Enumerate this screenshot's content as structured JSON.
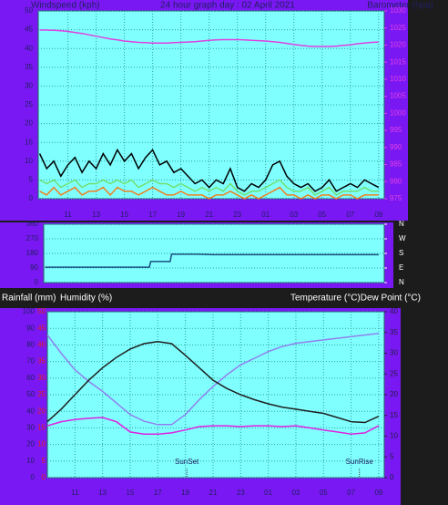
{
  "chart_data": [
    {
      "type": "line",
      "title": "24 hour graph day : 02 April 2021",
      "y_label": "Windspeed (kph)",
      "y2_label": "Barometer (hpa)",
      "x": [
        9,
        9.5,
        10,
        10.5,
        11,
        11.5,
        12,
        12.5,
        13,
        13.5,
        14,
        14.5,
        15,
        15.5,
        16,
        16.5,
        17,
        17.5,
        18,
        18.5,
        19,
        19.5,
        20,
        20.5,
        21,
        21.5,
        22,
        22.5,
        23,
        23.5,
        24,
        24.5,
        25,
        25.5,
        26,
        26.5,
        27,
        27.5,
        28,
        28.5,
        29,
        29.5,
        30,
        30.5,
        31,
        31.5,
        32,
        32.5,
        33
      ],
      "xlim": [
        8.9,
        33.4
      ],
      "xticks": [
        11,
        13,
        15,
        17,
        19,
        21,
        23,
        {
          "value": 25,
          "label": "01"
        },
        {
          "value": 27,
          "label": "03"
        },
        {
          "value": 29,
          "label": "05"
        },
        {
          "value": 31,
          "label": "07"
        },
        {
          "value": 33,
          "label": "09"
        }
      ],
      "ylim": [
        0,
        50
      ],
      "yticks": [
        0,
        5,
        10,
        15,
        20,
        25,
        30,
        35,
        40,
        45,
        50
      ],
      "y2lim": [
        975,
        1030
      ],
      "y2ticks": [
        975,
        980,
        985,
        990,
        995,
        1000,
        1005,
        1010,
        1015,
        1020,
        1025,
        1030
      ],
      "y2_color": "#e040e0",
      "grid": true,
      "series": [
        {
          "color": "#000000",
          "values": [
            12,
            8,
            10,
            6,
            9,
            11,
            7,
            10,
            8,
            12,
            9,
            13,
            10,
            12,
            8,
            11,
            13,
            9,
            10,
            7,
            8,
            6,
            4,
            5,
            3,
            5,
            4,
            8,
            3,
            2,
            4,
            3,
            5,
            9,
            10,
            6,
            4,
            3,
            4,
            2,
            3,
            5,
            2,
            3,
            4,
            3,
            5,
            4,
            3
          ]
        },
        {
          "color": "#70e070",
          "values": [
            5,
            4,
            5,
            3,
            4,
            5,
            3,
            4,
            4,
            5,
            4,
            5,
            4,
            5,
            3,
            4,
            5,
            4,
            4,
            3,
            4,
            3,
            2,
            3,
            2,
            3,
            2,
            4,
            2,
            1,
            2,
            2,
            3,
            4,
            5,
            3,
            2,
            2,
            3,
            1,
            2,
            3,
            1,
            2,
            2,
            2,
            3,
            2,
            2
          ]
        },
        {
          "color": "#f08020",
          "values": [
            2,
            1,
            3,
            1,
            2,
            3,
            1,
            2,
            2,
            3,
            1,
            3,
            2,
            2,
            1,
            2,
            3,
            2,
            1,
            1,
            2,
            1,
            1,
            1,
            0,
            1,
            1,
            2,
            1,
            0,
            1,
            0,
            1,
            2,
            3,
            1,
            1,
            0,
            1,
            0,
            1,
            1,
            0,
            1,
            1,
            0,
            1,
            1,
            1
          ]
        },
        {
          "color": "#e040e0",
          "axis": "y2",
          "values": [
            1024.4,
            1024.4,
            1024.3,
            1024.2,
            1024.0,
            1023.7,
            1023.4,
            1023.0,
            1022.6,
            1022.2,
            1021.8,
            1021.5,
            1021.2,
            1021.0,
            1020.8,
            1020.7,
            1020.6,
            1020.6,
            1020.6,
            1020.7,
            1020.8,
            1020.9,
            1021.0,
            1021.2,
            1021.4,
            1021.5,
            1021.6,
            1021.6,
            1021.6,
            1021.5,
            1021.4,
            1021.3,
            1021.2,
            1021.0,
            1020.8,
            1020.5,
            1020.2,
            1019.9,
            1019.7,
            1019.6,
            1019.6,
            1019.6,
            1019.7,
            1019.9,
            1020.1,
            1020.4,
            1020.6,
            1020.8,
            1020.9
          ]
        }
      ]
    },
    {
      "type": "line",
      "x": [
        9,
        16.5,
        16.6,
        18,
        18.1,
        20,
        21,
        33
      ],
      "xlim": [
        8.9,
        33.4
      ],
      "ylim": [
        0,
        360
      ],
      "yticks": [
        0,
        90,
        180,
        270,
        360
      ],
      "y2lim": [
        0,
        360
      ],
      "y2ticks": [
        {
          "value": 0,
          "label": "N"
        },
        {
          "value": 90,
          "label": "E"
        },
        {
          "value": 180,
          "label": "S"
        },
        {
          "value": 270,
          "label": "W"
        },
        {
          "value": 360,
          "label": "N"
        }
      ],
      "y2_color": "#ffffff",
      "grid": true,
      "series": [
        {
          "color": "#1a5080",
          "values": [
            95,
            95,
            130,
            130,
            175,
            175,
            172,
            172
          ]
        }
      ]
    },
    {
      "type": "line",
      "y_label": "Humidity (%)",
      "y2_label": "Temperature (°C)Dew Point (°C)",
      "y3_label": "Rainfall (mm)",
      "x": [
        9,
        10,
        11,
        12,
        13,
        14,
        15,
        16,
        17,
        18,
        19,
        20,
        21,
        22,
        23,
        24,
        25,
        26,
        27,
        28,
        29,
        30,
        31,
        32,
        33
      ],
      "xlim": [
        9,
        33.4
      ],
      "xticks": [
        11,
        13,
        15,
        17,
        19,
        21,
        23,
        {
          "value": 25,
          "label": "01"
        },
        {
          "value": 27,
          "label": "03"
        },
        {
          "value": 29,
          "label": "05"
        },
        {
          "value": 31,
          "label": "07"
        },
        {
          "value": 33,
          "label": "09"
        }
      ],
      "ylim": [
        0,
        100
      ],
      "yticks": [
        0,
        10,
        20,
        30,
        40,
        50,
        60,
        70,
        80,
        90,
        100
      ],
      "y2lim": [
        0,
        40
      ],
      "y2ticks": [
        0,
        5,
        10,
        15,
        20,
        25,
        30,
        35,
        40
      ],
      "y2_color": "#202040",
      "y3lim": [
        0,
        50
      ],
      "y3ticks": [
        0,
        5,
        10,
        15,
        20,
        25,
        30,
        35,
        40,
        45,
        50
      ],
      "y3_color": "#e02020",
      "grid": true,
      "annotations": [
        {
          "text": "SunSet",
          "x": 19.1
        },
        {
          "text": "SunRise",
          "x": 31.6
        }
      ],
      "series": [
        {
          "color": "#9080f0",
          "values": [
            86,
            75,
            65,
            58,
            52,
            45,
            38,
            34,
            32,
            32,
            38,
            47,
            55,
            62,
            68,
            72,
            76,
            79,
            81,
            82,
            83,
            84,
            85,
            86,
            87
          ]
        },
        {
          "color": "#202020",
          "axis": "y2",
          "values": [
            13.5,
            16.5,
            20,
            23.5,
            26.5,
            29,
            31,
            32.3,
            32.8,
            32.3,
            29.5,
            26.5,
            23.5,
            21.5,
            20,
            18.8,
            17.8,
            17,
            16.5,
            16,
            15.5,
            14.5,
            13.5,
            13.3,
            14.8
          ]
        },
        {
          "color": "#e020e0",
          "axis": "y2",
          "values": [
            12.5,
            13.5,
            14,
            14.3,
            14.5,
            13.5,
            11,
            10.5,
            10.5,
            10.8,
            11.5,
            12.3,
            12.5,
            12.5,
            12.3,
            12.5,
            12.5,
            12.3,
            12.5,
            12,
            11.5,
            11,
            10.5,
            10.8,
            12.5
          ]
        }
      ]
    }
  ]
}
